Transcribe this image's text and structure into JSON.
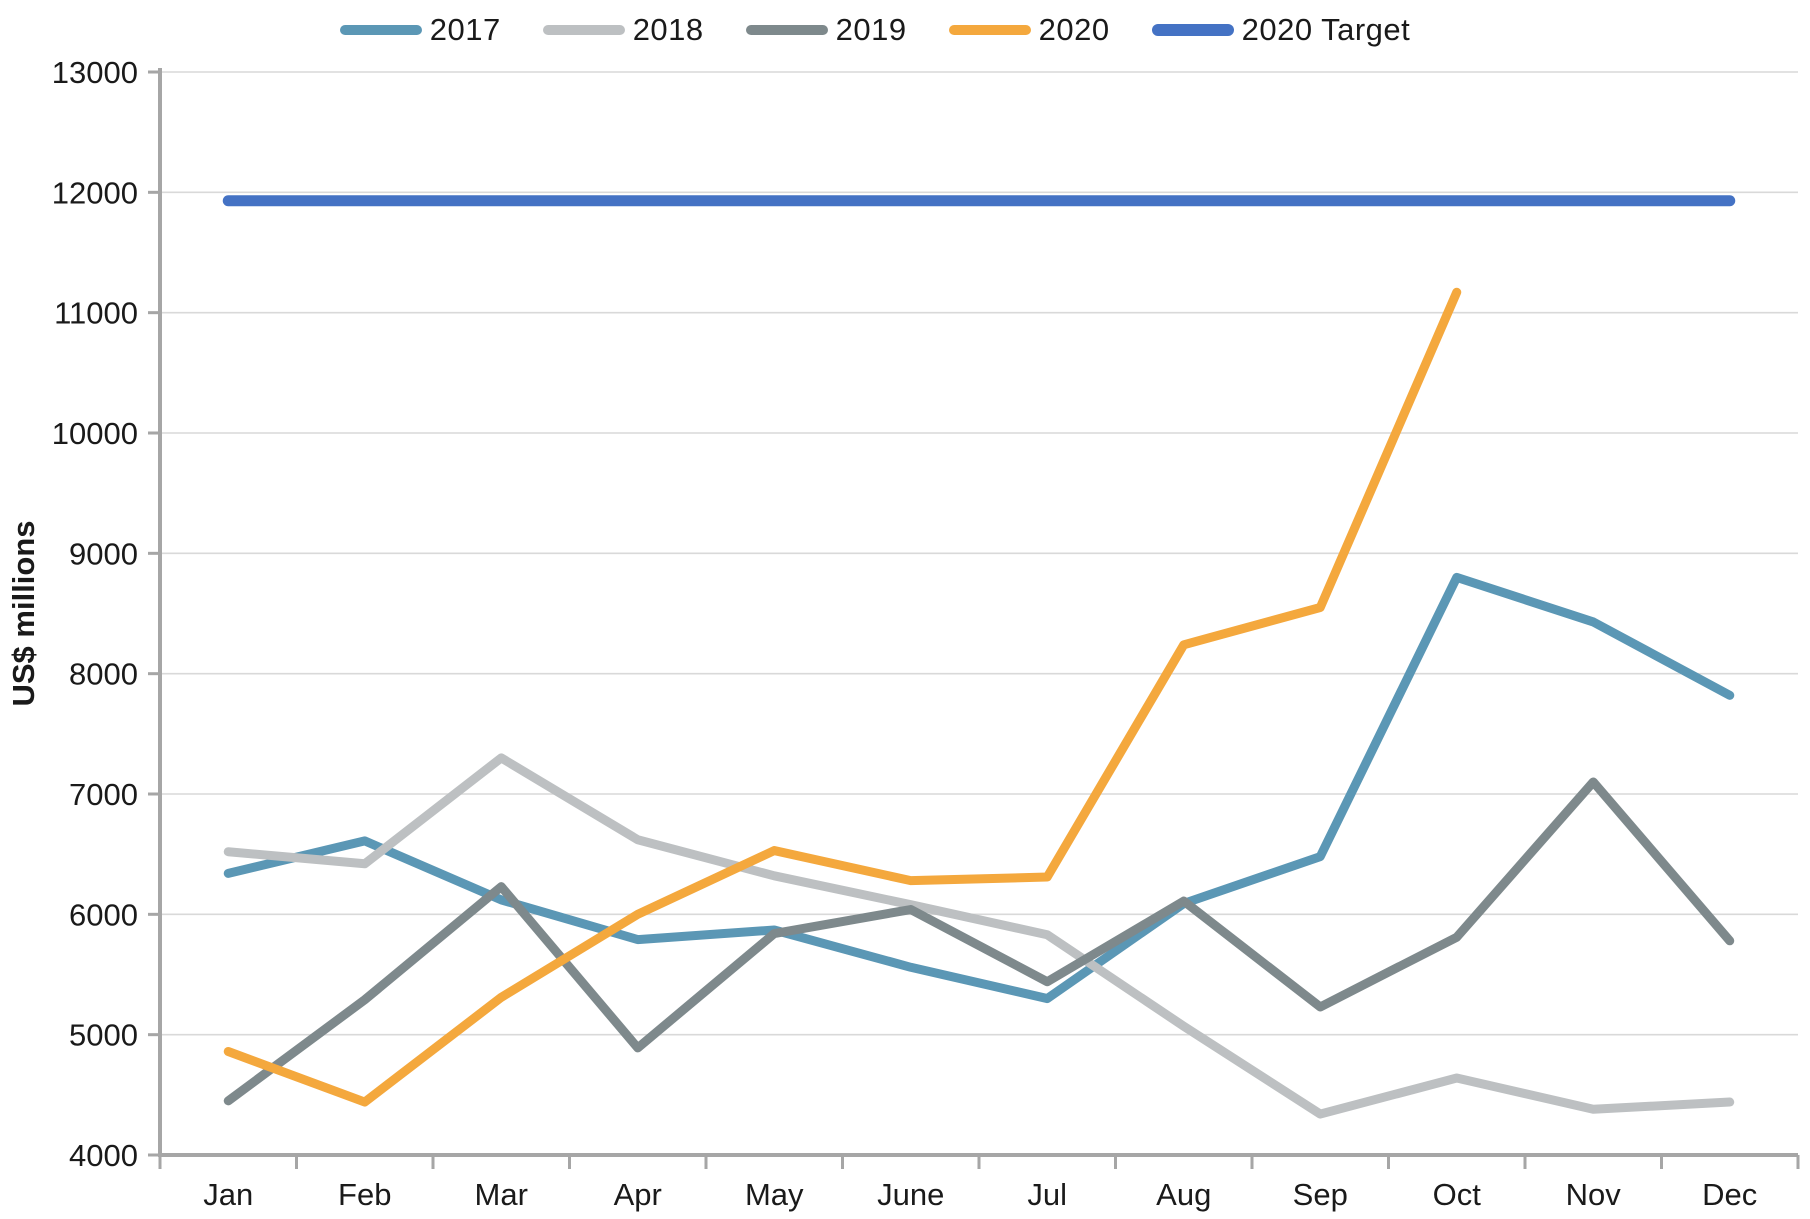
{
  "chart_data": {
    "type": "line",
    "title": "",
    "xlabel": "",
    "ylabel": "US$ millions",
    "categories": [
      "Jan",
      "Feb",
      "Mar",
      "Apr",
      "May",
      "June",
      "Jul",
      "Aug",
      "Sep",
      "Oct",
      "Nov",
      "Dec"
    ],
    "ylim": [
      4000,
      13000
    ],
    "ytick_step": 1000,
    "ytick_labels": [
      "4000",
      "5000",
      "6000",
      "7000",
      "8000",
      "9000",
      "10000",
      "11000",
      "12000",
      "13000"
    ],
    "grid": true,
    "legend_position": "top",
    "series": [
      {
        "name": "2017",
        "color": "#5B97B5",
        "width": 9,
        "values": [
          6340,
          6610,
          6120,
          5790,
          5870,
          5560,
          5300,
          6090,
          6480,
          8800,
          8430,
          7820
        ]
      },
      {
        "name": "2018",
        "color": "#BDC0C2",
        "width": 9,
        "values": [
          6520,
          6420,
          7300,
          6620,
          6320,
          6080,
          5830,
          5070,
          4340,
          4640,
          4380,
          4440
        ]
      },
      {
        "name": "2019",
        "color": "#7E898C",
        "width": 9,
        "values": [
          4450,
          5290,
          6230,
          4890,
          5840,
          6040,
          5440,
          6110,
          5230,
          5810,
          7100,
          5780
        ]
      },
      {
        "name": "2020",
        "color": "#F4A83D",
        "width": 9,
        "values": [
          4860,
          4440,
          5310,
          6000,
          6530,
          6280,
          6310,
          8240,
          8550,
          11170,
          null,
          null
        ]
      },
      {
        "name": "2020 Target",
        "color": "#4472C4",
        "width": 11,
        "values": [
          11930,
          11930,
          11930,
          11930,
          11930,
          11930,
          11930,
          11930,
          11930,
          11930,
          11930,
          11930
        ]
      }
    ],
    "axis_color": "#A6A6A6",
    "grid_color": "#D9D9D9",
    "text_color": "#1A1A1A"
  }
}
